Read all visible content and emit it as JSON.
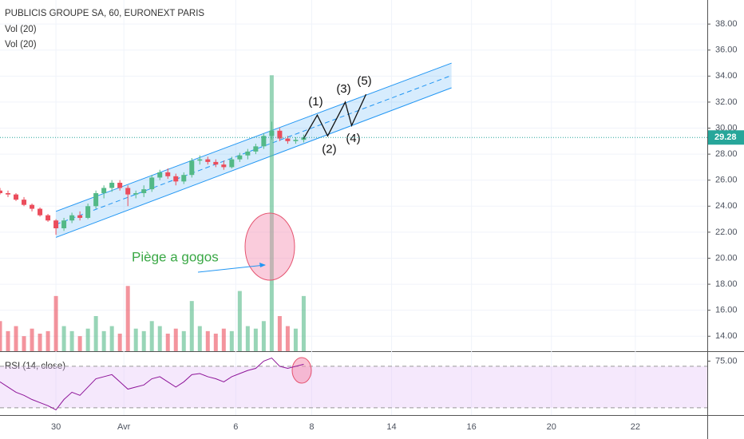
{
  "chart_data": {
    "type": "candlestick",
    "title": "PUBLICIS GROUPE SA, 60, EURONEXT PARIS",
    "indicators": [
      "Vol (20)",
      "Vol (20)"
    ],
    "rsi_title": "RSI (14, close)",
    "xlim": [
      0,
      177
    ],
    "xticks": [
      {
        "value": 14,
        "label": "30"
      },
      {
        "value": 31,
        "label": "Avr"
      },
      {
        "value": 59,
        "label": "6"
      },
      {
        "value": 78,
        "label": "8"
      },
      {
        "value": 98,
        "label": "14"
      },
      {
        "value": 118,
        "label": "16"
      },
      {
        "value": 138,
        "label": "20"
      },
      {
        "value": 159,
        "label": "22"
      }
    ],
    "ylim": [
      12.85,
      39.85
    ],
    "yticks": [
      {
        "value": 14,
        "label": "14.00"
      },
      {
        "value": 16,
        "label": "16.00"
      },
      {
        "value": 18,
        "label": "18.00"
      },
      {
        "value": 20,
        "label": "20.00"
      },
      {
        "value": 22,
        "label": "22.00"
      },
      {
        "value": 24,
        "label": "24.00"
      },
      {
        "value": 26,
        "label": "26.00"
      },
      {
        "value": 28,
        "label": "28.00"
      },
      {
        "value": 30,
        "label": "30.00"
      },
      {
        "value": 32,
        "label": "32.00"
      },
      {
        "value": 34,
        "label": "34.00"
      },
      {
        "value": 36,
        "label": "36.00"
      },
      {
        "value": 38,
        "label": "38.00"
      }
    ],
    "rsi_ylim": [
      23,
      83.8
    ],
    "rsi_yticks": [
      {
        "value": 75,
        "label": "75.00"
      }
    ],
    "rsi_band": [
      30,
      70
    ],
    "vlim": [
      0,
      140
    ],
    "grid": true,
    "up_color": "#53b987",
    "down_color": "#eb4d5c",
    "last_price": 29.28,
    "candles": [
      {
        "x": 0,
        "open": 25.2,
        "high": 25.4,
        "low": 24.9,
        "close": 25.0
      },
      {
        "x": 2,
        "open": 25.0,
        "high": 25.2,
        "low": 24.7,
        "close": 24.9
      },
      {
        "x": 4,
        "open": 24.9,
        "high": 25.0,
        "low": 24.4,
        "close": 24.5
      },
      {
        "x": 6,
        "open": 24.5,
        "high": 24.7,
        "low": 24.0,
        "close": 24.1
      },
      {
        "x": 8,
        "open": 24.1,
        "high": 24.2,
        "low": 23.6,
        "close": 23.8
      },
      {
        "x": 10,
        "open": 23.8,
        "high": 23.9,
        "low": 23.2,
        "close": 23.3
      },
      {
        "x": 12,
        "open": 23.3,
        "high": 23.4,
        "low": 22.8,
        "close": 22.9
      },
      {
        "x": 14,
        "open": 22.9,
        "high": 23.0,
        "low": 21.8,
        "close": 22.3
      },
      {
        "x": 16,
        "open": 22.3,
        "high": 23.1,
        "low": 22.1,
        "close": 22.9
      },
      {
        "x": 18,
        "open": 22.9,
        "high": 23.5,
        "low": 22.7,
        "close": 23.3
      },
      {
        "x": 20,
        "open": 23.3,
        "high": 23.6,
        "low": 22.9,
        "close": 23.1
      },
      {
        "x": 22,
        "open": 23.1,
        "high": 24.2,
        "low": 23.0,
        "close": 24.0
      },
      {
        "x": 24,
        "open": 24.0,
        "high": 25.2,
        "low": 23.8,
        "close": 25.0
      },
      {
        "x": 26,
        "open": 25.0,
        "high": 25.6,
        "low": 24.6,
        "close": 25.4
      },
      {
        "x": 28,
        "open": 25.4,
        "high": 26.0,
        "low": 25.1,
        "close": 25.8
      },
      {
        "x": 30,
        "open": 25.8,
        "high": 26.0,
        "low": 25.2,
        "close": 25.4
      },
      {
        "x": 32,
        "open": 25.4,
        "high": 25.6,
        "low": 24.0,
        "close": 24.9
      },
      {
        "x": 34,
        "open": 24.9,
        "high": 25.2,
        "low": 24.6,
        "close": 25.0
      },
      {
        "x": 36,
        "open": 25.0,
        "high": 25.6,
        "low": 24.7,
        "close": 25.3
      },
      {
        "x": 38,
        "open": 25.3,
        "high": 26.4,
        "low": 25.1,
        "close": 26.2
      },
      {
        "x": 40,
        "open": 26.2,
        "high": 26.8,
        "low": 26.0,
        "close": 26.6
      },
      {
        "x": 42,
        "open": 26.6,
        "high": 26.9,
        "low": 26.1,
        "close": 26.3
      },
      {
        "x": 44,
        "open": 26.3,
        "high": 26.5,
        "low": 25.6,
        "close": 25.9
      },
      {
        "x": 46,
        "open": 25.9,
        "high": 26.6,
        "low": 25.7,
        "close": 26.4
      },
      {
        "x": 48,
        "open": 26.4,
        "high": 27.7,
        "low": 26.2,
        "close": 27.5
      },
      {
        "x": 50,
        "open": 27.5,
        "high": 27.9,
        "low": 27.2,
        "close": 27.6
      },
      {
        "x": 52,
        "open": 27.6,
        "high": 27.8,
        "low": 27.2,
        "close": 27.4
      },
      {
        "x": 54,
        "open": 27.4,
        "high": 27.6,
        "low": 27.0,
        "close": 27.2
      },
      {
        "x": 56,
        "open": 27.2,
        "high": 27.5,
        "low": 26.8,
        "close": 27.0
      },
      {
        "x": 58,
        "open": 27.0,
        "high": 27.8,
        "low": 26.9,
        "close": 27.6
      },
      {
        "x": 60,
        "open": 27.6,
        "high": 28.1,
        "low": 27.4,
        "close": 27.9
      },
      {
        "x": 62,
        "open": 27.9,
        "high": 28.4,
        "low": 27.6,
        "close": 28.2
      },
      {
        "x": 64,
        "open": 28.2,
        "high": 28.8,
        "low": 28.0,
        "close": 28.6
      },
      {
        "x": 66,
        "open": 28.6,
        "high": 29.6,
        "low": 28.4,
        "close": 29.4
      },
      {
        "x": 68,
        "open": 29.4,
        "high": 30.5,
        "low": 29.1,
        "close": 29.8
      },
      {
        "x": 70,
        "open": 29.8,
        "high": 30.0,
        "low": 29.0,
        "close": 29.2
      },
      {
        "x": 72,
        "open": 29.2,
        "high": 29.4,
        "low": 28.8,
        "close": 29.0
      },
      {
        "x": 74,
        "open": 29.0,
        "high": 29.3,
        "low": 28.8,
        "close": 29.1
      },
      {
        "x": 76,
        "open": 29.1,
        "high": 29.5,
        "low": 28.9,
        "close": 29.28
      }
    ],
    "volume": [
      12,
      8,
      10,
      6,
      9,
      7,
      8,
      22,
      10,
      8,
      6,
      9,
      14,
      8,
      10,
      7,
      26,
      9,
      8,
      12,
      10,
      7,
      9,
      8,
      20,
      10,
      8,
      7,
      9,
      8,
      24,
      10,
      9,
      12,
      110,
      14,
      10,
      9,
      22
    ],
    "rsi": [
      55,
      50,
      45,
      42,
      38,
      35,
      32,
      28,
      38,
      45,
      42,
      50,
      58,
      60,
      62,
      55,
      48,
      50,
      52,
      58,
      60,
      55,
      50,
      55,
      62,
      63,
      60,
      58,
      55,
      60,
      63,
      66,
      68,
      75,
      78,
      70,
      68,
      70,
      72
    ],
    "channel": {
      "upper": [
        [
          14,
          23.6
        ],
        [
          113,
          35.0
        ]
      ],
      "lower": [
        [
          14,
          21.6
        ],
        [
          113,
          33.1
        ]
      ],
      "middle": [
        [
          14,
          22.6
        ],
        [
          113,
          34.05
        ]
      ]
    },
    "waves": {
      "points": [
        [
          76,
          29.2
        ],
        [
          79.4,
          31.0
        ],
        [
          82,
          29.4
        ],
        [
          86.4,
          32.0
        ],
        [
          88,
          30.2
        ],
        [
          91.6,
          32.6
        ]
      ],
      "labels": [
        "(1)",
        "(2)",
        "(3)",
        "(4)",
        "(5)"
      ]
    },
    "annotation": "Piège a gogos"
  }
}
